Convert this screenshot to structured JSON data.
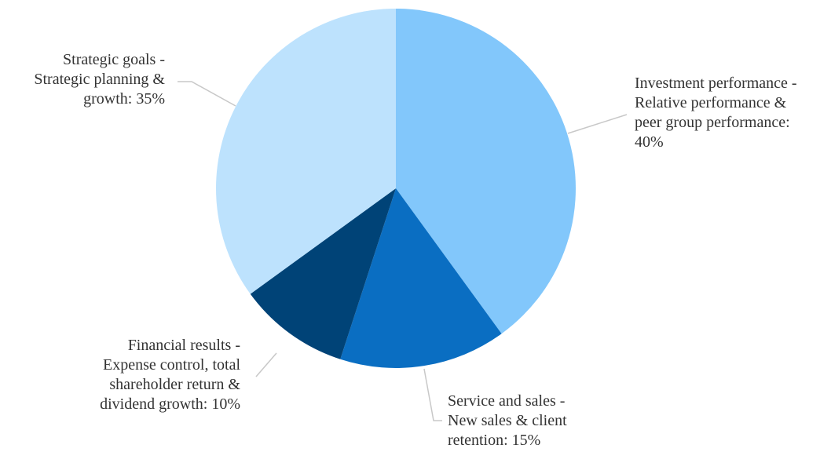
{
  "chart_data": {
    "type": "pie",
    "start_angle_deg": 0,
    "direction": "clockwise",
    "slices": [
      {
        "category": "Investment performance",
        "description": "Relative performance & peer group performance",
        "value": 40,
        "label_lines": [
          "Investment performance -",
          "Relative performance &",
          "peer group performance:",
          "40%"
        ],
        "color": "#82c7fb"
      },
      {
        "category": "Service and sales",
        "description": "New sales & client retention",
        "value": 15,
        "label_lines": [
          "Service and sales -",
          "New sales & client",
          "retention: 15%"
        ],
        "color": "#0a6ec2"
      },
      {
        "category": "Financial results",
        "description": "Expense control, total shareholder return & dividend growth",
        "value": 10,
        "label_lines": [
          "Financial results -",
          "Expense control, total",
          "shareholder return &",
          "dividend growth: 10%"
        ],
        "color": "#004377"
      },
      {
        "category": "Strategic goals",
        "description": "Strategic planning & growth",
        "value": 35,
        "label_lines": [
          "Strategic goals -",
          "Strategic planning &",
          "growth: 35%"
        ],
        "color": "#bde2fd"
      }
    ],
    "leader_line_color": "#c8c8c8",
    "label_color": "#333333"
  }
}
